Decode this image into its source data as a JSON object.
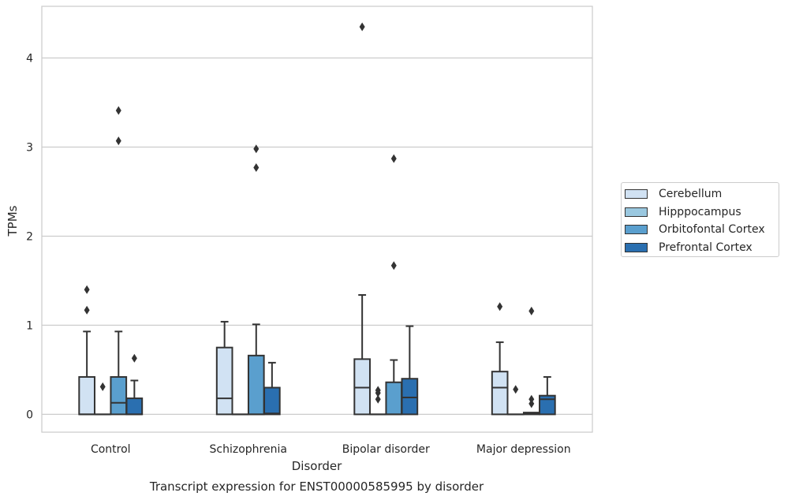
{
  "chart_data": {
    "type": "boxplot",
    "title": "Transcript expression for ENST00000585995 by disorder",
    "xlabel": "Disorder",
    "ylabel": "TPMs",
    "ylim": [
      -0.2,
      4.58
    ],
    "yticks": [
      0,
      1,
      2,
      3,
      4
    ],
    "grid": "horizontal",
    "legend_position": "right",
    "categories": [
      "Control",
      "Schizophrenia",
      "Bipolar disorder",
      "Major depression"
    ],
    "series": [
      {
        "name": "Cerebellum",
        "color": "#d1e2f3",
        "boxes": [
          {
            "min": 0,
            "q1": 0,
            "median": 0,
            "q3": 0.42,
            "max": 0.93,
            "outliers": [
              1.17,
              1.4
            ]
          },
          {
            "min": 0,
            "q1": 0,
            "median": 0.18,
            "q3": 0.75,
            "max": 1.04,
            "outliers": []
          },
          {
            "min": 0,
            "q1": 0,
            "median": 0.3,
            "q3": 0.62,
            "max": 1.34,
            "outliers": [
              4.35
            ]
          },
          {
            "min": 0,
            "q1": 0,
            "median": 0.3,
            "q3": 0.48,
            "max": 0.81,
            "outliers": [
              1.21
            ]
          }
        ]
      },
      {
        "name": "Hipppocampus",
        "color": "#9ac8e0",
        "boxes": [
          {
            "min": 0,
            "q1": 0,
            "median": 0,
            "q3": 0,
            "max": 0,
            "outliers": [
              0.31
            ]
          },
          {
            "min": 0,
            "q1": 0,
            "median": 0,
            "q3": 0,
            "max": 0,
            "outliers": []
          },
          {
            "min": 0,
            "q1": 0,
            "median": 0,
            "q3": 0,
            "max": 0,
            "outliers": [
              0.17,
              0.24,
              0.27
            ]
          },
          {
            "min": 0,
            "q1": 0,
            "median": 0,
            "q3": 0,
            "max": 0,
            "outliers": [
              0.28
            ]
          }
        ]
      },
      {
        "name": "Orbitofontal Cortex",
        "color": "#5a9fce",
        "boxes": [
          {
            "min": 0,
            "q1": 0,
            "median": 0.13,
            "q3": 0.42,
            "max": 0.93,
            "outliers": [
              3.07,
              3.41
            ]
          },
          {
            "min": 0,
            "q1": 0,
            "median": 0,
            "q3": 0.66,
            "max": 1.01,
            "outliers": [
              2.77,
              2.98
            ]
          },
          {
            "min": 0,
            "q1": 0,
            "median": 0,
            "q3": 0.36,
            "max": 0.61,
            "outliers": [
              1.67,
              2.87
            ]
          },
          {
            "min": 0,
            "q1": 0,
            "median": 0.01,
            "q3": 0.02,
            "max": 0.02,
            "outliers": [
              0.12,
              0.17,
              1.16
            ]
          }
        ]
      },
      {
        "name": "Prefrontal Cortex",
        "color": "#2a6fb0",
        "boxes": [
          {
            "min": 0,
            "q1": 0,
            "median": 0,
            "q3": 0.18,
            "max": 0.38,
            "outliers": [
              0.63
            ]
          },
          {
            "min": 0,
            "q1": 0,
            "median": 0.01,
            "q3": 0.3,
            "max": 0.58,
            "outliers": []
          },
          {
            "min": 0,
            "q1": 0,
            "median": 0.19,
            "q3": 0.4,
            "max": 0.99,
            "outliers": []
          },
          {
            "min": 0,
            "q1": 0,
            "median": 0.17,
            "q3": 0.21,
            "max": 0.42,
            "outliers": []
          }
        ]
      }
    ]
  }
}
